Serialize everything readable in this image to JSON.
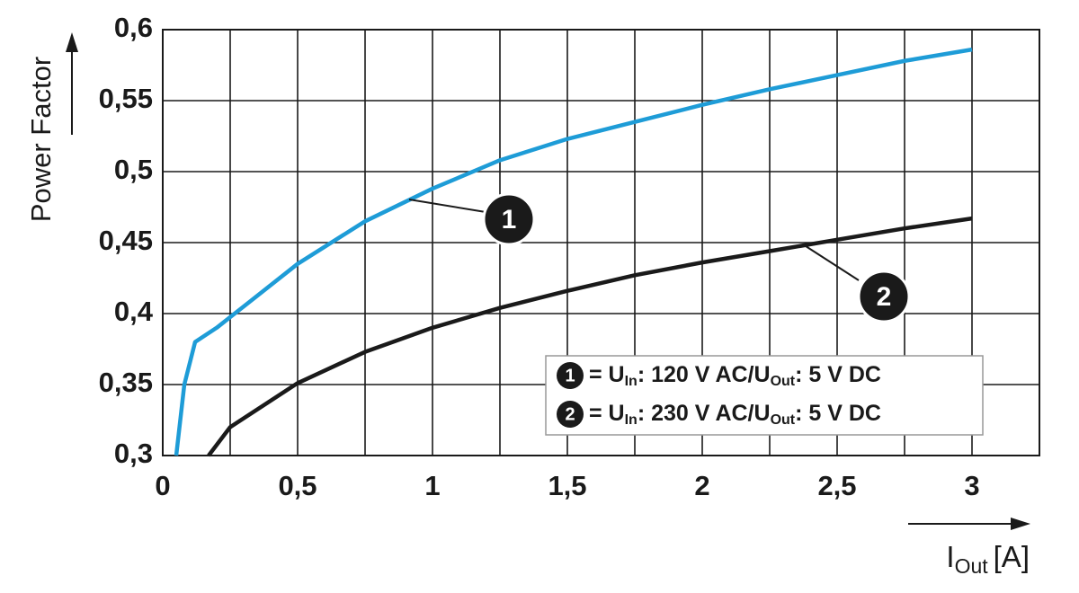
{
  "chart_data": {
    "type": "line",
    "y_label": "Power Factor",
    "x_label": {
      "main": "I",
      "sub": "Out",
      "unit": "[A]"
    },
    "xlim": [
      0,
      3.25
    ],
    "xticks": [
      {
        "value": 0,
        "label": "0"
      },
      {
        "value": 0.5,
        "label": "0,5"
      },
      {
        "value": 1,
        "label": "1"
      },
      {
        "value": 1.5,
        "label": "1,5"
      },
      {
        "value": 2,
        "label": "2"
      },
      {
        "value": 2.5,
        "label": "2,5"
      },
      {
        "value": 3,
        "label": "3"
      }
    ],
    "xgrid": [
      0.25,
      0.75,
      1.25,
      1.75,
      2.25,
      2.75,
      3.25
    ],
    "ylim": [
      0.3,
      0.6
    ],
    "yticks": [
      {
        "value": 0.3,
        "label": "0,3"
      },
      {
        "value": 0.35,
        "label": "0,35"
      },
      {
        "value": 0.4,
        "label": "0,4"
      },
      {
        "value": 0.45,
        "label": "0,45"
      },
      {
        "value": 0.5,
        "label": "0,5"
      },
      {
        "value": 0.55,
        "label": "0,55"
      },
      {
        "value": 0.6,
        "label": "0,6"
      }
    ],
    "grid": true,
    "series": [
      {
        "marker": "1",
        "label_parts": [
          "= U",
          "In",
          ": 120 V AC/U",
          "Out",
          ": 5 V DC"
        ],
        "color": "#1e9cd7",
        "x": [
          0.05,
          0.08,
          0.12,
          0.2,
          0.3,
          0.5,
          0.75,
          1,
          1.25,
          1.5,
          1.75,
          2,
          2.25,
          2.5,
          2.75,
          3
        ],
        "values": [
          0.3,
          0.35,
          0.38,
          0.39,
          0.405,
          0.435,
          0.465,
          0.488,
          0.508,
          0.523,
          0.535,
          0.547,
          0.558,
          0.568,
          0.578,
          0.586
        ]
      },
      {
        "marker": "2",
        "label_parts": [
          "= U",
          "In",
          ": 230 V AC/U",
          "Out",
          ": 5 V DC"
        ],
        "color": "#1a1a1a",
        "x": [
          0.17,
          0.25,
          0.5,
          0.75,
          1,
          1.25,
          1.5,
          1.75,
          2,
          2.25,
          2.5,
          2.75,
          3
        ],
        "values": [
          0.3,
          0.32,
          0.351,
          0.373,
          0.39,
          0.404,
          0.416,
          0.427,
          0.436,
          0.444,
          0.452,
          0.46,
          0.467
        ]
      }
    ]
  }
}
